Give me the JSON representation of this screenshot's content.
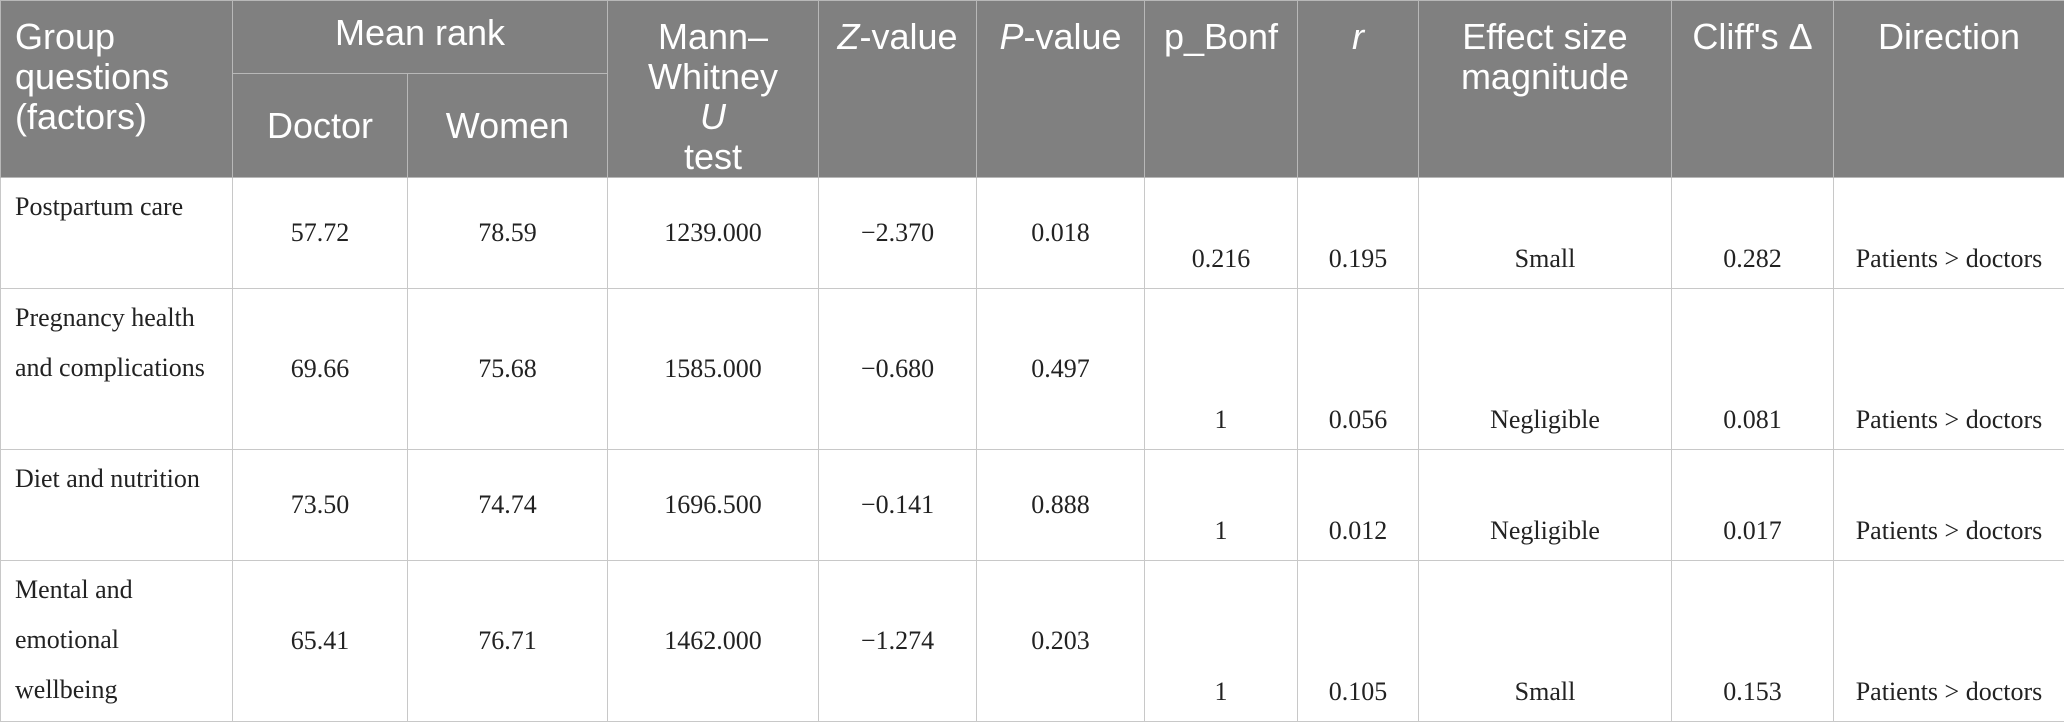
{
  "header": {
    "group": "Group questions (factors)",
    "mean_rank": "Mean rank",
    "doctor": "Doctor",
    "women": "Women",
    "mann_whitney_prefix": "Mann–Whitney",
    "mann_whitney_u": "U",
    "mann_whitney_suffix": "test",
    "z_italic": "Z",
    "z_suffix": "-value",
    "p_italic": "P",
    "p_suffix": "-value",
    "p_bonf": "p_Bonf",
    "r": "r",
    "effect": "Effect size magnitude",
    "cliffs": "Cliff's Δ",
    "direction": "Direction"
  },
  "rows": [
    {
      "group": "Postpartum care",
      "doctor": "57.72",
      "women": "78.59",
      "u": "1239.000",
      "z": "−2.370",
      "p": "0.018",
      "p_bonf": "0.216",
      "r": "0.195",
      "effect": "Small",
      "cliffs": "0.282",
      "direction": "Patients > doctors"
    },
    {
      "group": "Pregnancy health and complications",
      "doctor": "69.66",
      "women": "75.68",
      "u": "1585.000",
      "z": "−0.680",
      "p": "0.497",
      "p_bonf": "1",
      "r": "0.056",
      "effect": "Negligible",
      "cliffs": "0.081",
      "direction": "Patients > doctors"
    },
    {
      "group": "Diet and nutrition",
      "doctor": "73.50",
      "women": "74.74",
      "u": "1696.500",
      "z": "−0.141",
      "p": "0.888",
      "p_bonf": "1",
      "r": "0.012",
      "effect": "Negligible",
      "cliffs": "0.017",
      "direction": "Patients > doctors"
    },
    {
      "group": "Mental and emotional wellbeing",
      "doctor": "65.41",
      "women": "76.71",
      "u": "1462.000",
      "z": "−1.274",
      "p": "0.203",
      "p_bonf": "1",
      "r": "0.105",
      "effect": "Small",
      "cliffs": "0.153",
      "direction": "Patients > doctors"
    }
  ],
  "colors": {
    "header_bg": "#808080",
    "header_text": "#ffffff",
    "border": "#c8c8c8"
  }
}
